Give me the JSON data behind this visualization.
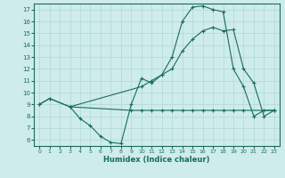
{
  "xlabel": "Humidex (Indice chaleur)",
  "bg_color": "#ceecea",
  "line_color": "#1a6b5e",
  "grid_color": "#b0d8d4",
  "xlim": [
    -0.5,
    23.5
  ],
  "ylim": [
    5.5,
    17.5
  ],
  "xticks": [
    0,
    1,
    2,
    3,
    4,
    5,
    6,
    7,
    8,
    9,
    10,
    11,
    12,
    13,
    14,
    15,
    16,
    17,
    18,
    19,
    20,
    21,
    22,
    23
  ],
  "yticks": [
    6,
    7,
    8,
    9,
    10,
    11,
    12,
    13,
    14,
    15,
    16,
    17
  ],
  "line1_x": [
    0,
    1,
    3,
    4,
    5,
    6,
    7,
    8,
    9,
    10,
    11,
    12,
    13,
    14,
    15,
    16,
    17,
    18,
    19,
    20,
    21,
    22,
    23
  ],
  "line1_y": [
    9.0,
    9.5,
    8.8,
    7.8,
    7.2,
    6.3,
    5.8,
    5.7,
    9.0,
    11.2,
    10.8,
    11.5,
    13.0,
    16.0,
    17.2,
    17.3,
    17.0,
    16.8,
    12.0,
    10.5,
    8.0,
    8.5,
    8.5
  ],
  "line2_x": [
    0,
    1,
    3,
    10,
    11,
    12,
    13,
    14,
    15,
    16,
    17,
    18,
    19,
    20,
    21,
    22,
    23
  ],
  "line2_y": [
    9.0,
    9.5,
    8.8,
    10.5,
    11.0,
    11.5,
    12.0,
    13.5,
    14.5,
    15.2,
    15.5,
    15.2,
    15.3,
    12.0,
    10.8,
    8.0,
    8.5
  ],
  "line3_x": [
    3,
    9,
    10,
    11,
    12,
    13,
    14,
    15,
    16,
    17,
    18,
    19,
    20,
    23
  ],
  "line3_y": [
    8.8,
    8.5,
    8.5,
    8.5,
    8.5,
    8.5,
    8.5,
    8.5,
    8.5,
    8.5,
    8.5,
    8.5,
    8.5,
    8.5
  ]
}
